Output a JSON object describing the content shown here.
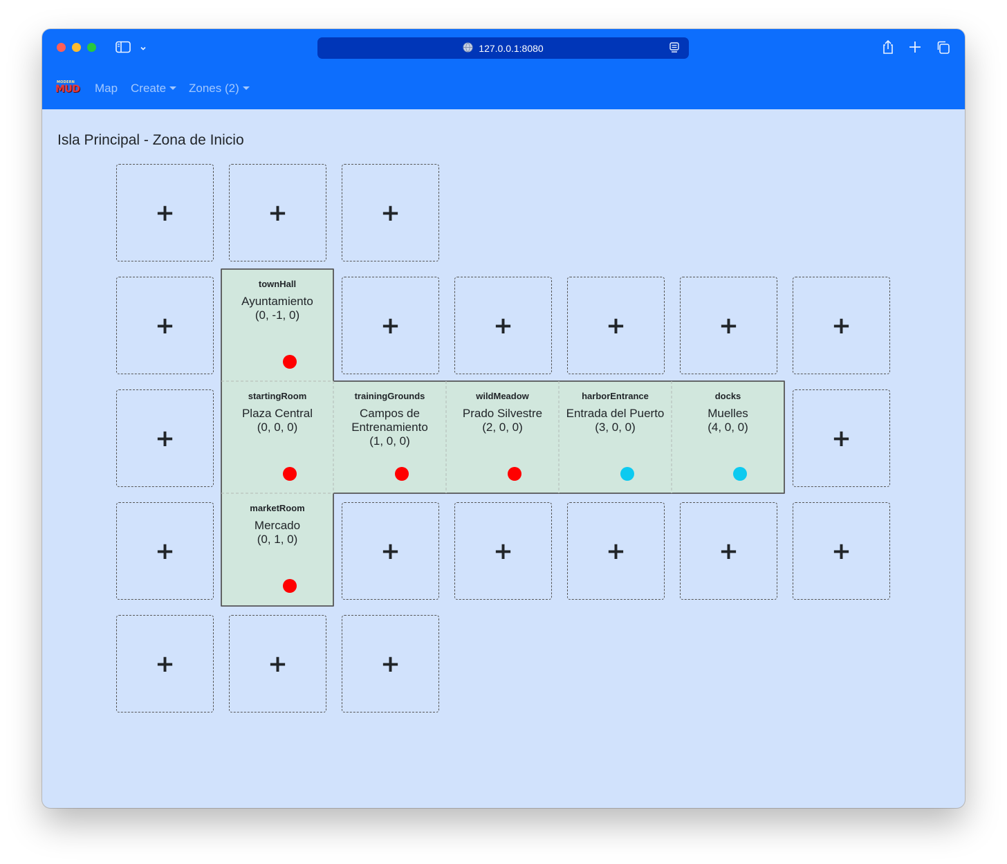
{
  "browser": {
    "url": "127.0.0.1:8080"
  },
  "nav": {
    "logo_top": "MODERN",
    "logo_main": "MUD",
    "map_label": "Map",
    "create_label": "Create",
    "zones_label": "Zones (2)"
  },
  "page": {
    "title": "Isla Principal - Zona de Inicio",
    "add_symbol": "+"
  },
  "colors": {
    "navbar": "#0d6efd",
    "page_background": "#d1e2fc",
    "room_background": "#d1e7dd",
    "dot_red": "#ff0000",
    "dot_cyan": "#0dcaf0"
  },
  "rooms": [
    {
      "id": "townHall",
      "name": "Ayuntamiento",
      "coords": "(0, -1, 0)",
      "dot": "red"
    },
    {
      "id": "startingRoom",
      "name": "Plaza Central",
      "coords": "(0, 0, 0)",
      "dot": "red"
    },
    {
      "id": "trainingGrounds",
      "name": "Campos de Entrenamiento",
      "coords": "(1, 0, 0)",
      "dot": "red"
    },
    {
      "id": "wildMeadow",
      "name": "Prado Silvestre",
      "coords": "(2, 0, 0)",
      "dot": "red"
    },
    {
      "id": "harborEntrance",
      "name": "Entrada del Puerto",
      "coords": "(3, 0, 0)",
      "dot": "cyan"
    },
    {
      "id": "docks",
      "name": "Muelles",
      "coords": "(4, 0, 0)",
      "dot": "cyan"
    },
    {
      "id": "marketRoom",
      "name": "Mercado",
      "coords": "(0, 1, 0)",
      "dot": "red"
    }
  ]
}
